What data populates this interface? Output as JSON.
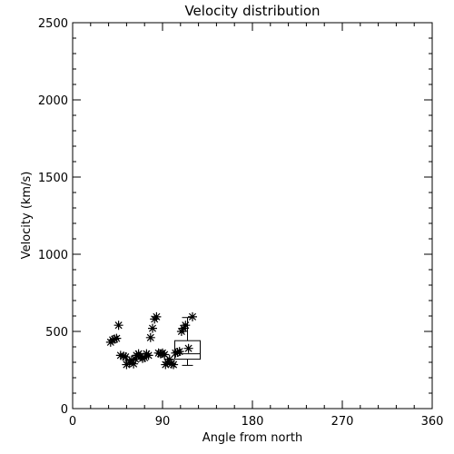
{
  "chart_data": {
    "type": "scatter",
    "title": "Velocity distribution",
    "xlabel": "Angle from north",
    "ylabel": "Velocity (km/s)",
    "xlim": [
      0,
      360
    ],
    "ylim": [
      0,
      2500
    ],
    "xticks": [
      0,
      90,
      180,
      270,
      360
    ],
    "yticks": [
      0,
      500,
      1000,
      1500,
      2000,
      2500
    ],
    "grid": false,
    "marker": "asterisk",
    "points": [
      [
        38,
        430
      ],
      [
        40,
        445
      ],
      [
        42,
        450
      ],
      [
        44,
        455
      ],
      [
        46,
        540
      ],
      [
        48,
        345
      ],
      [
        51,
        340
      ],
      [
        53,
        335
      ],
      [
        54,
        285
      ],
      [
        57,
        300
      ],
      [
        59,
        315
      ],
      [
        61,
        290
      ],
      [
        63,
        320
      ],
      [
        64,
        345
      ],
      [
        66,
        355
      ],
      [
        68,
        340
      ],
      [
        70,
        325
      ],
      [
        72,
        330
      ],
      [
        74,
        355
      ],
      [
        76,
        345
      ],
      [
        78,
        460
      ],
      [
        80,
        520
      ],
      [
        82,
        580
      ],
      [
        84,
        595
      ],
      [
        86,
        360
      ],
      [
        88,
        355
      ],
      [
        90,
        360
      ],
      [
        92,
        350
      ],
      [
        93,
        285
      ],
      [
        95,
        300
      ],
      [
        97,
        320
      ],
      [
        99,
        290
      ],
      [
        101,
        285
      ],
      [
        103,
        360
      ],
      [
        105,
        365
      ],
      [
        107,
        370
      ],
      [
        109,
        500
      ],
      [
        111,
        520
      ],
      [
        113,
        540
      ],
      [
        116,
        390
      ],
      [
        120,
        595
      ]
    ],
    "boxplot": {
      "x": 115,
      "whisker_low": 280,
      "q1": 320,
      "median": 355,
      "q3": 440,
      "whisker_high": 590
    }
  }
}
